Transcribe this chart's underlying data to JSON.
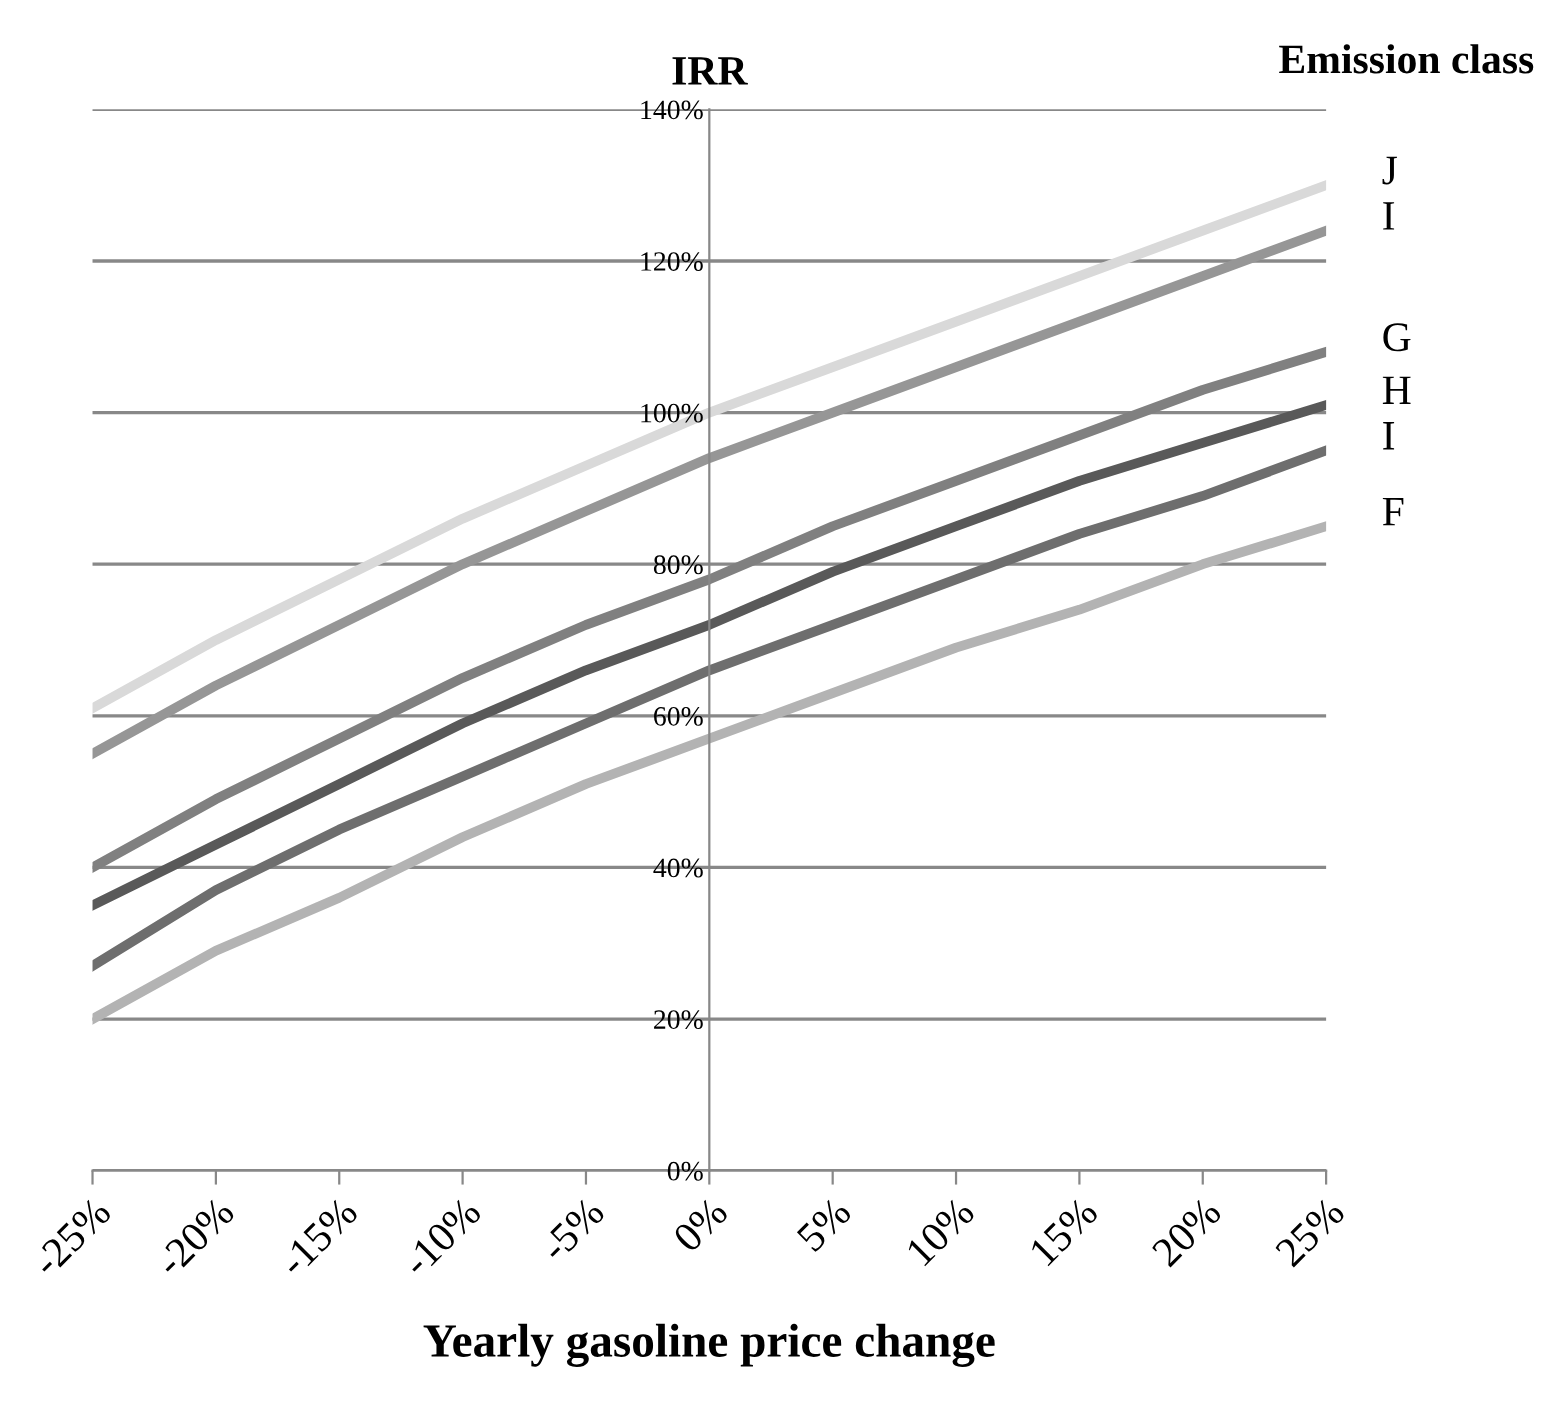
{
  "chart_data": {
    "type": "line",
    "title": "IRR",
    "xlabel": "Yearly gasoline price change",
    "legend_title": "Emission class",
    "x": [
      -25,
      -20,
      -15,
      -10,
      -5,
      0,
      5,
      10,
      15,
      20,
      25
    ],
    "series": [
      {
        "name": "J",
        "color": "#d9d9d9",
        "values": [
          61,
          70,
          78,
          86,
          93,
          100,
          106,
          112,
          118,
          124,
          130
        ]
      },
      {
        "name": "I",
        "color": "#969696",
        "values": [
          55,
          64,
          72,
          80,
          87,
          94,
          100,
          106,
          112,
          118,
          124
        ]
      },
      {
        "name": "G",
        "color": "#808080",
        "values": [
          40,
          49,
          57,
          65,
          72,
          78,
          85,
          91,
          97,
          103,
          108
        ]
      },
      {
        "name": "H",
        "color": "#595959",
        "values": [
          35,
          43,
          51,
          59,
          66,
          72,
          79,
          85,
          91,
          96,
          101
        ]
      },
      {
        "name": "I",
        "color": "#6e6e6e",
        "values": [
          27,
          37,
          45,
          52,
          59,
          66,
          72,
          78,
          84,
          89,
          95
        ]
      },
      {
        "name": "F",
        "color": "#b3b3b3",
        "values": [
          20,
          29,
          36,
          44,
          51,
          57,
          63,
          69,
          74,
          80,
          85
        ]
      }
    ],
    "xlim": [
      -25,
      25
    ],
    "xticks": [
      {
        "value": -25,
        "label": "-25%"
      },
      {
        "value": -20,
        "label": "-20%"
      },
      {
        "value": -15,
        "label": "-15%"
      },
      {
        "value": -10,
        "label": "-10%"
      },
      {
        "value": -5,
        "label": "-5%"
      },
      {
        "value": 0,
        "label": "0%"
      },
      {
        "value": 5,
        "label": "5%"
      },
      {
        "value": 10,
        "label": "10%"
      },
      {
        "value": 15,
        "label": "15%"
      },
      {
        "value": 20,
        "label": "20%"
      },
      {
        "value": 25,
        "label": "25%"
      }
    ],
    "ylim": [
      0,
      140
    ],
    "yticks": [
      {
        "value": 0,
        "label": "0%"
      },
      {
        "value": 20,
        "label": "20%"
      },
      {
        "value": 40,
        "label": "40%"
      },
      {
        "value": 60,
        "label": "60%"
      },
      {
        "value": 80,
        "label": "80%"
      },
      {
        "value": 100,
        "label": "100%"
      },
      {
        "value": 120,
        "label": "120%"
      },
      {
        "value": 140,
        "label": "140%"
      }
    ],
    "grid": "y",
    "marker": "none",
    "line_style": "solid"
  }
}
